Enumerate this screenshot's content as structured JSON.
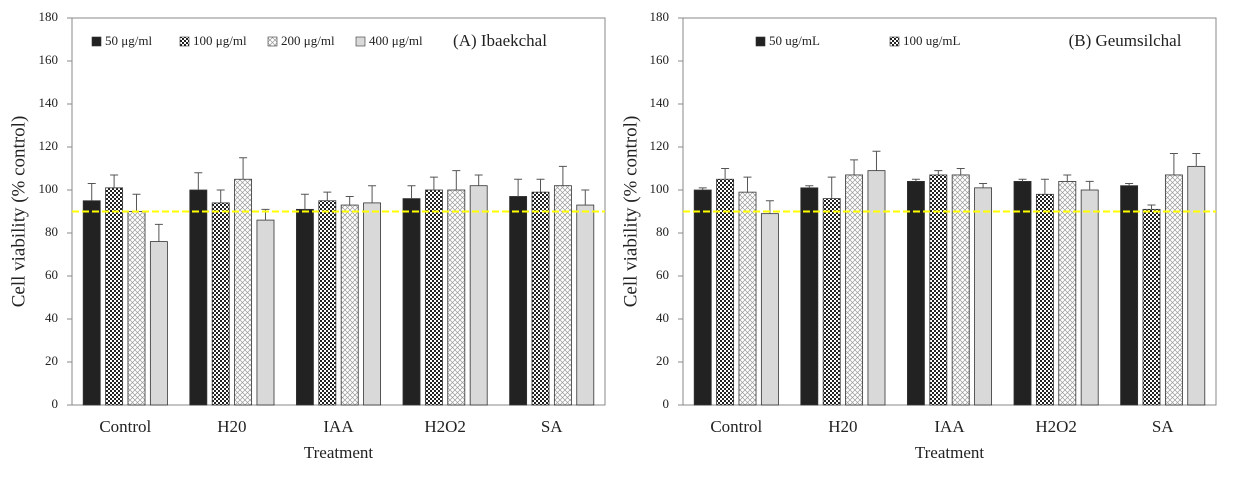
{
  "chart_data": [
    {
      "type": "bar",
      "title": "(A) Ibaekchal",
      "xlabel": "Treatment",
      "ylabel": "Cell viability (% control)",
      "categories": [
        "Control",
        "H20",
        "IAA",
        "H2O2",
        "SA"
      ],
      "series": [
        {
          "name": "50  μg/ml",
          "color": "#222222",
          "pattern": "solid",
          "values": [
            95,
            100,
            91,
            96,
            97
          ],
          "errors": [
            8,
            8,
            7,
            6,
            8
          ]
        },
        {
          "name": "100 μg/ml",
          "color": "#222222",
          "pattern": "checker",
          "values": [
            101,
            94,
            95,
            100,
            99
          ],
          "errors": [
            6,
            6,
            4,
            6,
            6
          ]
        },
        {
          "name": "200  μg/ml",
          "color": "#9a9a9a",
          "pattern": "crosshatch",
          "values": [
            90,
            105,
            93,
            100,
            102
          ],
          "errors": [
            8,
            10,
            4,
            9,
            9
          ]
        },
        {
          "name": "400  μg/ml",
          "color": "#d9d9d9",
          "pattern": "solid",
          "values": [
            76,
            86,
            94,
            102,
            93
          ],
          "errors": [
            8,
            5,
            8,
            5,
            7
          ]
        }
      ],
      "ylim": [
        0,
        180
      ],
      "yticks": [
        0,
        20,
        40,
        60,
        80,
        100,
        120,
        140,
        160,
        180
      ],
      "hline": {
        "value": 90,
        "color": "#ffff00"
      }
    },
    {
      "type": "bar",
      "title": "(B) Geumsilchal",
      "xlabel": "Treatment",
      "ylabel": "Cell viability (% control)",
      "categories": [
        "Control",
        "H20",
        "IAA",
        "H2O2",
        "SA"
      ],
      "series": [
        {
          "name": "50 ug/mL",
          "color": "#222222",
          "pattern": "solid",
          "values": [
            100,
            101,
            104,
            104,
            102
          ],
          "errors": [
            1,
            1,
            1,
            1,
            1
          ]
        },
        {
          "name": "100 ug/mL",
          "color": "#222222",
          "pattern": "checker",
          "values": [
            105,
            96,
            107,
            98,
            91
          ],
          "errors": [
            5,
            10,
            2,
            7,
            2
          ]
        },
        {
          "color": "#9a9a9a",
          "pattern": "crosshatch",
          "values": [
            99,
            107,
            107,
            104,
            107
          ],
          "errors": [
            7,
            7,
            3,
            3,
            10
          ]
        },
        {
          "color": "#d9d9d9",
          "pattern": "solid",
          "values": [
            89,
            109,
            101,
            100,
            111
          ],
          "errors": [
            6,
            9,
            2,
            4,
            6
          ]
        }
      ],
      "ylim": [
        0,
        180
      ],
      "yticks": [
        0,
        20,
        40,
        60,
        80,
        100,
        120,
        140,
        160,
        180
      ],
      "hline": {
        "value": 90,
        "color": "#ffff00"
      }
    }
  ]
}
